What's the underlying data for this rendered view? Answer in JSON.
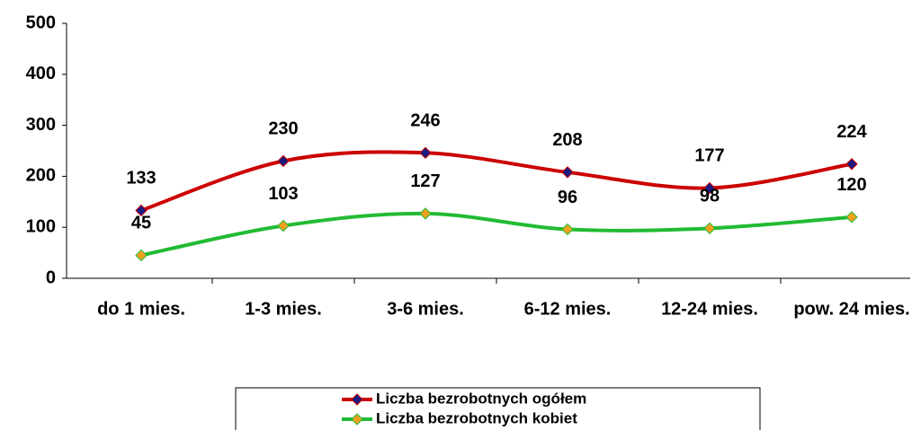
{
  "chart_data": {
    "type": "line",
    "categories": [
      "do 1 mies.",
      "1-3 mies.",
      "3-6 mies.",
      "6-12 mies.",
      "12-24 mies.",
      "pow. 24 mies."
    ],
    "series": [
      {
        "name": "Liczba bezrobotnych ogółem",
        "color": "#cc0000",
        "marker_color": "#1a1a80",
        "values": [
          133,
          230,
          246,
          208,
          177,
          224
        ]
      },
      {
        "name": "Liczba bezrobotnych kobiet",
        "color": "#22bb33",
        "marker_color": "#f0a020",
        "values": [
          45,
          103,
          127,
          96,
          98,
          120
        ]
      }
    ],
    "ylim": [
      0,
      500
    ],
    "yticks": [
      0,
      100,
      200,
      300,
      400,
      500
    ],
    "grid": false,
    "smooth": true,
    "legend": "bottom"
  }
}
